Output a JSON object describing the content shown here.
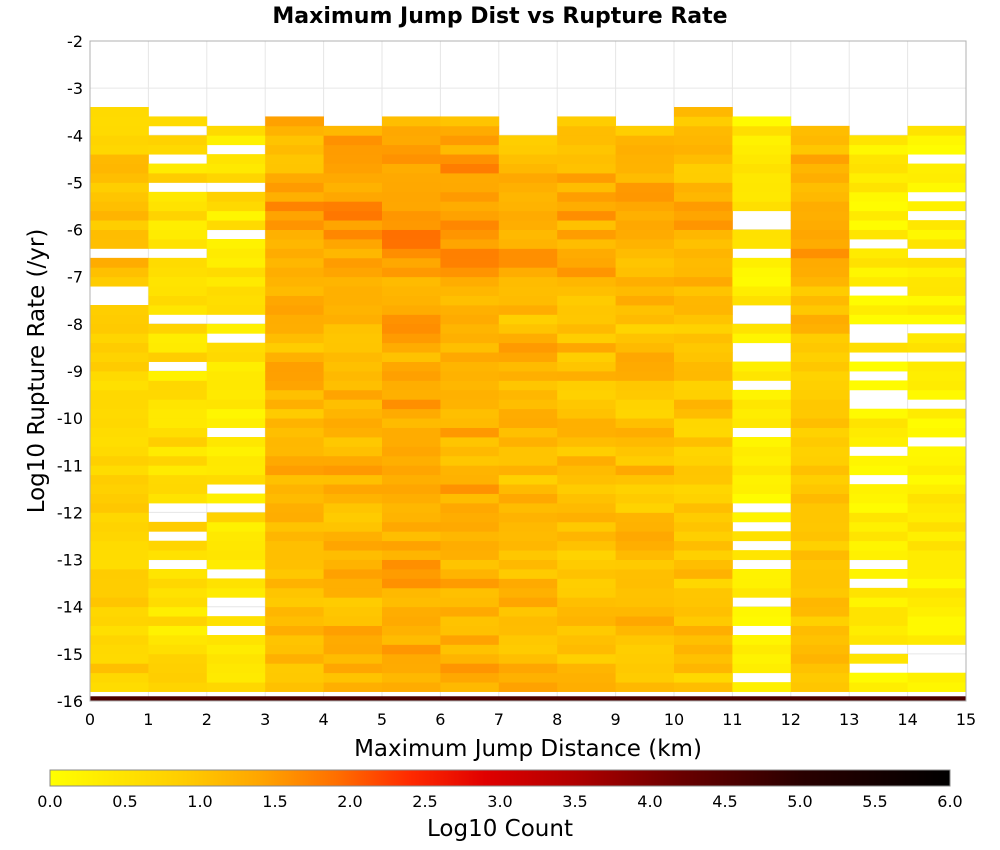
{
  "chart_data": {
    "type": "heatmap",
    "title": "Maximum Jump Dist vs Rupture Rate",
    "xlabel": "Maximum Jump Distance (km)",
    "ylabel": "Log10 Rupture Rate (/yr)",
    "xlim": [
      0,
      15
    ],
    "ylim": [
      -16,
      -2
    ],
    "x_ticks": [
      "0",
      "1",
      "2",
      "3",
      "4",
      "5",
      "6",
      "7",
      "8",
      "9",
      "10",
      "11",
      "12",
      "13",
      "14",
      "15"
    ],
    "y_ticks": [
      "-2",
      "-3",
      "-4",
      "-5",
      "-6",
      "-7",
      "-8",
      "-9",
      "-10",
      "-11",
      "-12",
      "-13",
      "-14",
      "-15",
      "-16"
    ],
    "grid": true,
    "x_bin_width": 1,
    "y_bin_height": 0.2,
    "y_bin_start": -16,
    "colorbar": {
      "label": "Log10 Count",
      "min": 0.0,
      "max": 6.0,
      "ticks": [
        "0.0",
        "0.5",
        "1.0",
        "1.5",
        "2.0",
        "2.5",
        "3.0",
        "3.5",
        "4.0",
        "4.5",
        "5.0",
        "5.5",
        "6.0"
      ],
      "colors": [
        "#ffff00",
        "#ffcc00",
        "#ffa500",
        "#ff7000",
        "#ff2a00",
        "#e00000",
        "#b00000",
        "#6a0000",
        "#2a0000",
        "#000000"
      ],
      "color_stops": [
        0.0,
        0.9,
        1.4,
        1.9,
        2.4,
        2.9,
        3.5,
        4.2,
        5.0,
        6.0
      ],
      "placement": "bottom"
    },
    "columns": [
      {
        "x": 0,
        "range": [
          -16,
          -3.3
        ],
        "base": 0.85,
        "amp": 0.25,
        "dens": 0.9,
        "mode": 1.0
      },
      {
        "x": 1,
        "range": [
          -16,
          -3.6
        ],
        "base": 0.6,
        "amp": 0.35,
        "dens": 0.8,
        "mode": 0.6
      },
      {
        "x": 2,
        "range": [
          -16,
          -3.8
        ],
        "base": 0.5,
        "amp": 0.35,
        "dens": 0.85,
        "mode": 0.4
      },
      {
        "x": 3,
        "range": [
          -16,
          -3.6
        ],
        "base": 1.25,
        "amp": 0.25,
        "dens": 1.0,
        "mode": 1.0
      },
      {
        "x": 4,
        "range": [
          -16,
          -3.8
        ],
        "base": 1.3,
        "amp": 0.25,
        "dens": 1.0,
        "mode": 1.0
      },
      {
        "x": 5,
        "range": [
          -16,
          -3.6
        ],
        "base": 1.4,
        "amp": 0.25,
        "dens": 1.0,
        "mode": 1.0
      },
      {
        "x": 6,
        "range": [
          -16,
          -3.6
        ],
        "base": 1.35,
        "amp": 0.3,
        "dens": 1.0,
        "mode": 1.0
      },
      {
        "x": 7,
        "range": [
          -16,
          -4.1
        ],
        "base": 1.2,
        "amp": 0.3,
        "dens": 1.0,
        "mode": 1.0
      },
      {
        "x": 8,
        "range": [
          -16,
          -3.6
        ],
        "base": 1.15,
        "amp": 0.3,
        "dens": 1.0,
        "mode": 1.0
      },
      {
        "x": 9,
        "range": [
          -16,
          -3.8
        ],
        "base": 1.15,
        "amp": 0.3,
        "dens": 1.0,
        "mode": 1.0
      },
      {
        "x": 10,
        "range": [
          -16,
          -3.3
        ],
        "base": 1.05,
        "amp": 0.3,
        "dens": 1.0,
        "mode": 1.0
      },
      {
        "x": 11,
        "range": [
          -16,
          -3.6
        ],
        "base": 0.35,
        "amp": 0.3,
        "dens": 0.8,
        "mode": 0.4
      },
      {
        "x": 12,
        "range": [
          -16,
          -3.8
        ],
        "base": 1.1,
        "amp": 0.25,
        "dens": 1.0,
        "mode": 1.0
      },
      {
        "x": 13,
        "range": [
          -16,
          -4.1
        ],
        "base": 0.3,
        "amp": 0.3,
        "dens": 0.75,
        "mode": 0.4
      },
      {
        "x": 14,
        "range": [
          -16,
          -3.8
        ],
        "base": 0.3,
        "amp": 0.3,
        "dens": 0.75,
        "mode": 0.4
      }
    ],
    "bottom_row": {
      "y": -16,
      "value": 4.6
    }
  }
}
